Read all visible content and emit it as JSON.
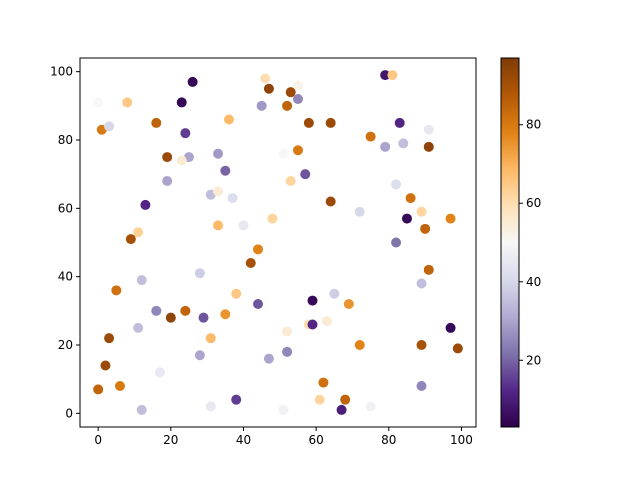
{
  "chart_data": {
    "type": "scatter",
    "title": "",
    "xlabel": "",
    "ylabel": "",
    "xlim": [
      -5,
      104
    ],
    "ylim": [
      -4,
      104
    ],
    "xticks": [
      0,
      20,
      40,
      60,
      80,
      100
    ],
    "yticks": [
      0,
      20,
      40,
      60,
      80,
      100
    ],
    "grid": false,
    "colormap": "PuOr_r",
    "colorbar": {
      "vmin": 3,
      "vmax": 97,
      "ticks": [
        20,
        40,
        60,
        80
      ]
    },
    "points": [
      {
        "x": 0,
        "y": 91,
        "c": 50
      },
      {
        "x": 1,
        "y": 83,
        "c": 80
      },
      {
        "x": 3,
        "y": 84,
        "c": 40
      },
      {
        "x": 8,
        "y": 91,
        "c": 65
      },
      {
        "x": 16,
        "y": 85,
        "c": 85
      },
      {
        "x": 26,
        "y": 97,
        "c": 5
      },
      {
        "x": 23,
        "y": 91,
        "c": 5
      },
      {
        "x": 24,
        "y": 82,
        "c": 15
      },
      {
        "x": 25,
        "y": 75,
        "c": 30
      },
      {
        "x": 23,
        "y": 74,
        "c": 55
      },
      {
        "x": 19,
        "y": 75,
        "c": 92
      },
      {
        "x": 19,
        "y": 68,
        "c": 30
      },
      {
        "x": 13,
        "y": 61,
        "c": 12
      },
      {
        "x": 9,
        "y": 51,
        "c": 90
      },
      {
        "x": 11,
        "y": 53,
        "c": 63
      },
      {
        "x": 12,
        "y": 39,
        "c": 35
      },
      {
        "x": 5,
        "y": 36,
        "c": 82
      },
      {
        "x": 3,
        "y": 22,
        "c": 92
      },
      {
        "x": 2,
        "y": 14,
        "c": 92
      },
      {
        "x": 0,
        "y": 7,
        "c": 85
      },
      {
        "x": 6,
        "y": 8,
        "c": 80
      },
      {
        "x": 11,
        "y": 25,
        "c": 35
      },
      {
        "x": 12,
        "y": 1,
        "c": 35
      },
      {
        "x": 17,
        "y": 12,
        "c": 45
      },
      {
        "x": 16,
        "y": 30,
        "c": 25
      },
      {
        "x": 20,
        "y": 28,
        "c": 94
      },
      {
        "x": 24,
        "y": 30,
        "c": 85
      },
      {
        "x": 28,
        "y": 17,
        "c": 30
      },
      {
        "x": 29,
        "y": 28,
        "c": 18
      },
      {
        "x": 31,
        "y": 22,
        "c": 68
      },
      {
        "x": 31,
        "y": 2,
        "c": 45
      },
      {
        "x": 28,
        "y": 41,
        "c": 38
      },
      {
        "x": 35,
        "y": 29,
        "c": 75
      },
      {
        "x": 38,
        "y": 35,
        "c": 65
      },
      {
        "x": 38,
        "y": 4,
        "c": 15
      },
      {
        "x": 42,
        "y": 44,
        "c": 90
      },
      {
        "x": 44,
        "y": 48,
        "c": 78
      },
      {
        "x": 44,
        "y": 32,
        "c": 18
      },
      {
        "x": 47,
        "y": 16,
        "c": 30
      },
      {
        "x": 51,
        "y": 1,
        "c": 48
      },
      {
        "x": 52,
        "y": 18,
        "c": 25
      },
      {
        "x": 52,
        "y": 24,
        "c": 55
      },
      {
        "x": 33,
        "y": 55,
        "c": 68
      },
      {
        "x": 37,
        "y": 63,
        "c": 42
      },
      {
        "x": 40,
        "y": 55,
        "c": 45
      },
      {
        "x": 48,
        "y": 57,
        "c": 62
      },
      {
        "x": 31,
        "y": 64,
        "c": 35
      },
      {
        "x": 33,
        "y": 65,
        "c": 55
      },
      {
        "x": 35,
        "y": 71,
        "c": 20
      },
      {
        "x": 33,
        "y": 76,
        "c": 28
      },
      {
        "x": 36,
        "y": 86,
        "c": 68
      },
      {
        "x": 45,
        "y": 90,
        "c": 28
      },
      {
        "x": 46,
        "y": 98,
        "c": 60
      },
      {
        "x": 47,
        "y": 95,
        "c": 94
      },
      {
        "x": 52,
        "y": 90,
        "c": 85
      },
      {
        "x": 53,
        "y": 94,
        "c": 92
      },
      {
        "x": 55,
        "y": 96,
        "c": 52
      },
      {
        "x": 55,
        "y": 92,
        "c": 25
      },
      {
        "x": 58,
        "y": 85,
        "c": 92
      },
      {
        "x": 64,
        "y": 85,
        "c": 92
      },
      {
        "x": 55,
        "y": 77,
        "c": 80
      },
      {
        "x": 51,
        "y": 76,
        "c": 50
      },
      {
        "x": 53,
        "y": 68,
        "c": 62
      },
      {
        "x": 57,
        "y": 70,
        "c": 18
      },
      {
        "x": 64,
        "y": 62,
        "c": 92
      },
      {
        "x": 72,
        "y": 59,
        "c": 40
      },
      {
        "x": 59,
        "y": 33,
        "c": 5
      },
      {
        "x": 58,
        "y": 26,
        "c": 60
      },
      {
        "x": 59,
        "y": 26,
        "c": 12
      },
      {
        "x": 63,
        "y": 27,
        "c": 55
      },
      {
        "x": 65,
        "y": 35,
        "c": 38
      },
      {
        "x": 69,
        "y": 32,
        "c": 75
      },
      {
        "x": 72,
        "y": 20,
        "c": 78
      },
      {
        "x": 61,
        "y": 4,
        "c": 62
      },
      {
        "x": 62,
        "y": 9,
        "c": 82
      },
      {
        "x": 67,
        "y": 1,
        "c": 10
      },
      {
        "x": 68,
        "y": 4,
        "c": 85
      },
      {
        "x": 75,
        "y": 2,
        "c": 48
      },
      {
        "x": 75,
        "y": 81,
        "c": 82
      },
      {
        "x": 79,
        "y": 78,
        "c": 30
      },
      {
        "x": 79,
        "y": 99,
        "c": 8
      },
      {
        "x": 81,
        "y": 99,
        "c": 65
      },
      {
        "x": 83,
        "y": 85,
        "c": 12
      },
      {
        "x": 84,
        "y": 79,
        "c": 35
      },
      {
        "x": 82,
        "y": 67,
        "c": 42
      },
      {
        "x": 86,
        "y": 63,
        "c": 82
      },
      {
        "x": 89,
        "y": 59,
        "c": 62
      },
      {
        "x": 85,
        "y": 57,
        "c": 5
      },
      {
        "x": 90,
        "y": 54,
        "c": 85
      },
      {
        "x": 82,
        "y": 50,
        "c": 22
      },
      {
        "x": 91,
        "y": 42,
        "c": 85
      },
      {
        "x": 89,
        "y": 38,
        "c": 35
      },
      {
        "x": 91,
        "y": 83,
        "c": 45
      },
      {
        "x": 91,
        "y": 78,
        "c": 94
      },
      {
        "x": 97,
        "y": 57,
        "c": 78
      },
      {
        "x": 97,
        "y": 25,
        "c": 5
      },
      {
        "x": 99,
        "y": 19,
        "c": 92
      },
      {
        "x": 89,
        "y": 20,
        "c": 90
      },
      {
        "x": 89,
        "y": 8,
        "c": 25
      }
    ]
  }
}
